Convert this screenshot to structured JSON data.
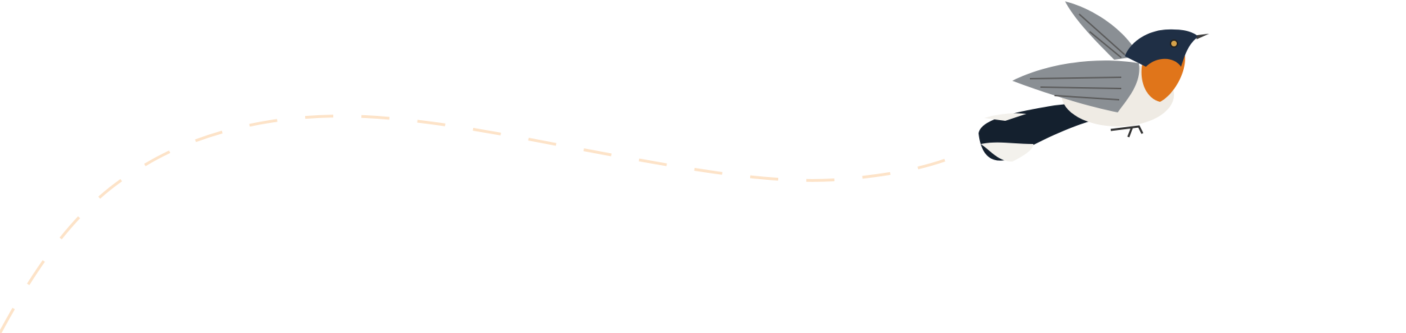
{
  "colors": {
    "background": "#ffffff",
    "flight_path": "#fde3c8",
    "bird_head": "#1f2f45",
    "bird_throat": "#e0751a",
    "bird_belly": "#efebe4",
    "bird_wing": "#8a8f94",
    "bird_tail": "#14202e"
  },
  "icons": {
    "bird": "bird-icon",
    "path": "dashed-flight-path"
  }
}
